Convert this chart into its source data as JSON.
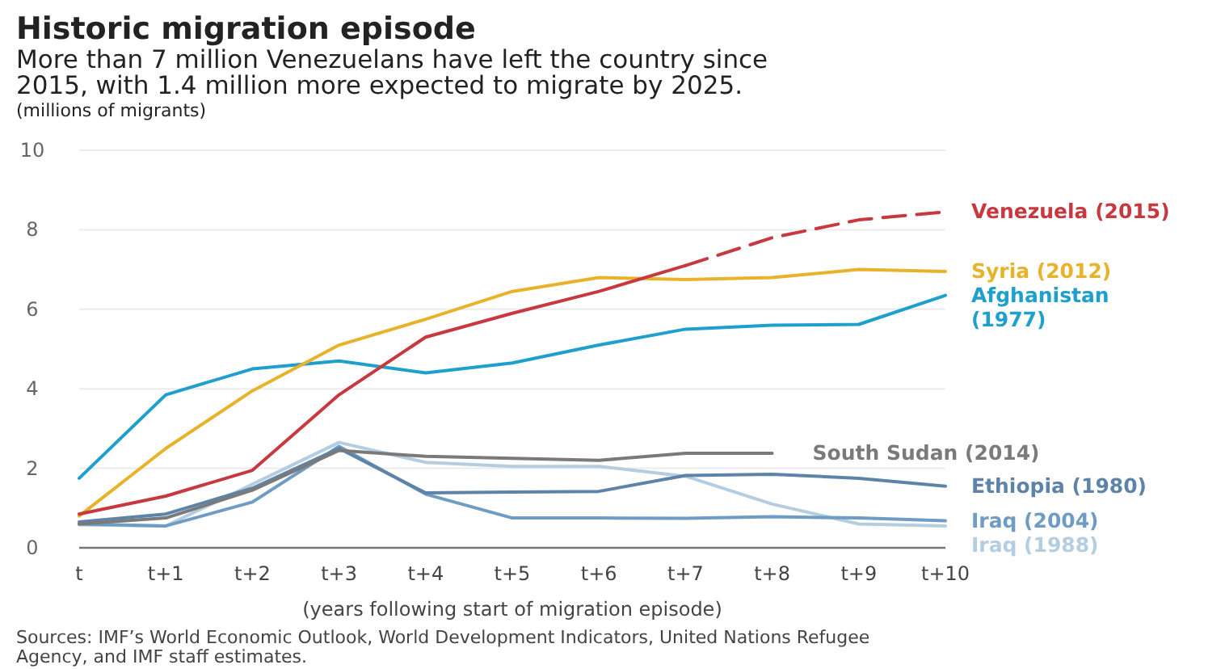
{
  "chart_data": {
    "type": "line",
    "title": "Historic migration episode",
    "subtitle": "More than 7 million Venezuelans have left the country since 2015, with 1.4 million more expected to migrate by 2025.",
    "ylabel": "(millions of migrants)",
    "xlabel": "(years following start of migration episode)",
    "categories": [
      "t",
      "t+1",
      "t+2",
      "t+3",
      "t+4",
      "t+5",
      "t+6",
      "t+7",
      "t+8",
      "t+9",
      "t+10"
    ],
    "series": [
      {
        "name": "Iraq (1988)",
        "color": "#b4cde0",
        "values": [
          0.58,
          0.55,
          1.6,
          2.65,
          2.15,
          2.05,
          2.05,
          1.8,
          1.1,
          0.6,
          0.55
        ]
      },
      {
        "name": "Iraq (2004)",
        "color": "#6f9cc4",
        "values": [
          0.6,
          0.55,
          1.15,
          2.55,
          1.35,
          0.75,
          0.75,
          0.74,
          0.78,
          0.75,
          0.68
        ]
      },
      {
        "name": "Ethiopia (1980)",
        "color": "#5d84a8",
        "values": [
          0.65,
          0.85,
          1.5,
          2.5,
          1.38,
          1.4,
          1.42,
          1.82,
          1.85,
          1.75,
          1.55
        ]
      },
      {
        "name": "South Sudan (2014)",
        "color": "#7a7a7a",
        "values": [
          0.6,
          0.75,
          1.45,
          2.45,
          2.3,
          2.25,
          2.2,
          2.38,
          2.38,
          null,
          null
        ]
      },
      {
        "name": "Afghanistan (1977)",
        "color": "#1e9fcc",
        "values": [
          1.75,
          3.85,
          4.5,
          4.7,
          4.4,
          4.65,
          5.1,
          5.5,
          5.6,
          5.62,
          6.35
        ]
      },
      {
        "name": "Syria (2012)",
        "color": "#e8b32a",
        "values": [
          0.8,
          2.5,
          3.95,
          5.1,
          5.75,
          6.45,
          6.8,
          6.75,
          6.8,
          7.0,
          6.95
        ]
      },
      {
        "name": "Venezuela (2015)",
        "color": "#c8393f",
        "values": [
          0.85,
          1.3,
          1.95,
          3.85,
          5.3,
          5.9,
          6.45,
          7.1,
          null,
          null,
          null
        ]
      },
      {
        "color": "#c8393f",
        "line_style": "dashed",
        "values": [
          null,
          null,
          null,
          null,
          null,
          null,
          null,
          7.1,
          7.8,
          8.25,
          8.45
        ]
      }
    ],
    "ylim": [
      0,
      10
    ],
    "yticks": [
      0,
      2,
      4,
      6,
      8,
      10
    ],
    "grid": "y",
    "legend": false,
    "line_style": "solid",
    "marker": "none",
    "annotations": [
      "Sources: IMF’s World Economic Outlook, World Development Indicators, United Nations Refugee Agency, and IMF staff estimates."
    ]
  }
}
